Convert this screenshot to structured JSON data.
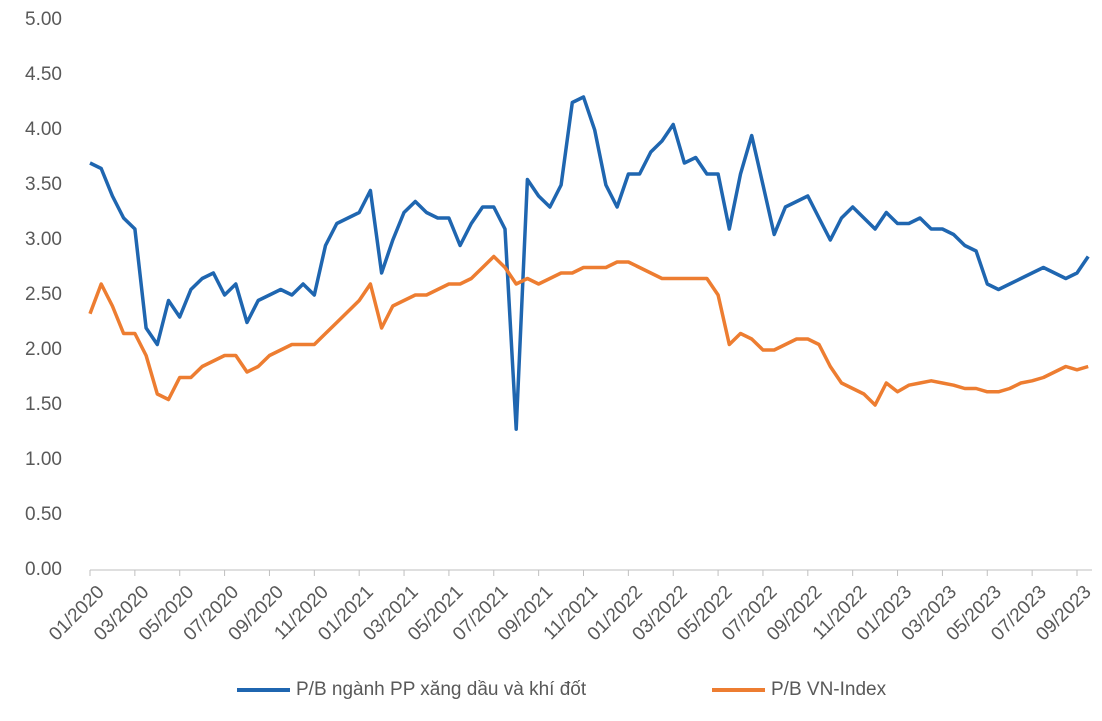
{
  "chart_data": {
    "type": "line",
    "categories": [
      "01/2020",
      null,
      null,
      null,
      "03/2020",
      null,
      null,
      null,
      "05/2020",
      null,
      null,
      null,
      "07/2020",
      null,
      null,
      null,
      "09/2020",
      null,
      null,
      null,
      "11/2020",
      null,
      null,
      null,
      "01/2021",
      null,
      null,
      null,
      "03/2021",
      null,
      null,
      null,
      "05/2021",
      null,
      null,
      null,
      "07/2021",
      null,
      null,
      null,
      "09/2021",
      null,
      null,
      null,
      "11/2021",
      null,
      null,
      null,
      "01/2022",
      null,
      null,
      null,
      "03/2022",
      null,
      null,
      null,
      "05/2022",
      null,
      null,
      null,
      "07/2022",
      null,
      null,
      null,
      "09/2022",
      null,
      null,
      null,
      "11/2022",
      null,
      null,
      null,
      "01/2023",
      null,
      null,
      null,
      "03/2023",
      null,
      null,
      null,
      "05/2023",
      null,
      null,
      null,
      "07/2023",
      null,
      null,
      null,
      "09/2023",
      null
    ],
    "series": [
      {
        "name": "P/B ngành PP xăng dầu và khí đốt",
        "color": "#1f66b0",
        "values": [
          3.7,
          3.65,
          3.4,
          3.2,
          3.1,
          2.2,
          2.05,
          2.45,
          2.3,
          2.55,
          2.65,
          2.7,
          2.5,
          2.6,
          2.25,
          2.45,
          2.5,
          2.55,
          2.5,
          2.6,
          2.5,
          2.95,
          3.15,
          3.2,
          3.25,
          3.45,
          2.7,
          3.0,
          3.25,
          3.35,
          3.25,
          3.2,
          3.2,
          2.95,
          3.15,
          3.3,
          3.3,
          3.1,
          1.28,
          3.55,
          3.4,
          3.3,
          3.5,
          4.25,
          4.3,
          4.0,
          3.5,
          3.3,
          3.6,
          3.6,
          3.8,
          3.9,
          4.05,
          3.7,
          3.75,
          3.6,
          3.6,
          3.1,
          3.6,
          3.95,
          3.5,
          3.05,
          3.3,
          3.35,
          3.4,
          3.2,
          3.0,
          3.2,
          3.3,
          3.2,
          3.1,
          3.25,
          3.15,
          3.15,
          3.2,
          3.1,
          3.1,
          3.05,
          2.95,
          2.9,
          2.6,
          2.55,
          2.6,
          2.65,
          2.7,
          2.75,
          2.7,
          2.65,
          2.7,
          2.85
        ]
      },
      {
        "name": "P/B VN-Index",
        "color": "#ed7d31",
        "values": [
          2.33,
          2.6,
          2.4,
          2.15,
          2.15,
          1.95,
          1.6,
          1.55,
          1.75,
          1.75,
          1.85,
          1.9,
          1.95,
          1.95,
          1.8,
          1.85,
          1.95,
          2.0,
          2.05,
          2.05,
          2.05,
          2.15,
          2.25,
          2.35,
          2.45,
          2.6,
          2.2,
          2.4,
          2.45,
          2.5,
          2.5,
          2.55,
          2.6,
          2.6,
          2.65,
          2.75,
          2.85,
          2.75,
          2.6,
          2.65,
          2.6,
          2.65,
          2.7,
          2.7,
          2.75,
          2.75,
          2.75,
          2.8,
          2.8,
          2.75,
          2.7,
          2.65,
          2.65,
          2.65,
          2.65,
          2.65,
          2.5,
          2.05,
          2.15,
          2.1,
          2.0,
          2.0,
          2.05,
          2.1,
          2.1,
          2.05,
          1.85,
          1.7,
          1.65,
          1.6,
          1.5,
          1.7,
          1.62,
          1.68,
          1.7,
          1.72,
          1.7,
          1.68,
          1.65,
          1.65,
          1.62,
          1.62,
          1.65,
          1.7,
          1.72,
          1.75,
          1.8,
          1.85,
          1.82,
          1.85
        ]
      }
    ],
    "ylim": [
      0,
      5
    ],
    "yticks": [
      {
        "value": 0,
        "label": "0.00"
      },
      {
        "value": 0.5,
        "label": "0.50"
      },
      {
        "value": 1,
        "label": "1.00"
      },
      {
        "value": 1.5,
        "label": "1.50"
      },
      {
        "value": 2,
        "label": "2.00"
      },
      {
        "value": 2.5,
        "label": "2.50"
      },
      {
        "value": 3,
        "label": "3.00"
      },
      {
        "value": 3.5,
        "label": "3.50"
      },
      {
        "value": 4,
        "label": "4.00"
      },
      {
        "value": 4.5,
        "label": "4.50"
      },
      {
        "value": 5,
        "label": "5.00"
      }
    ],
    "grid": false,
    "legend": "bottom"
  }
}
